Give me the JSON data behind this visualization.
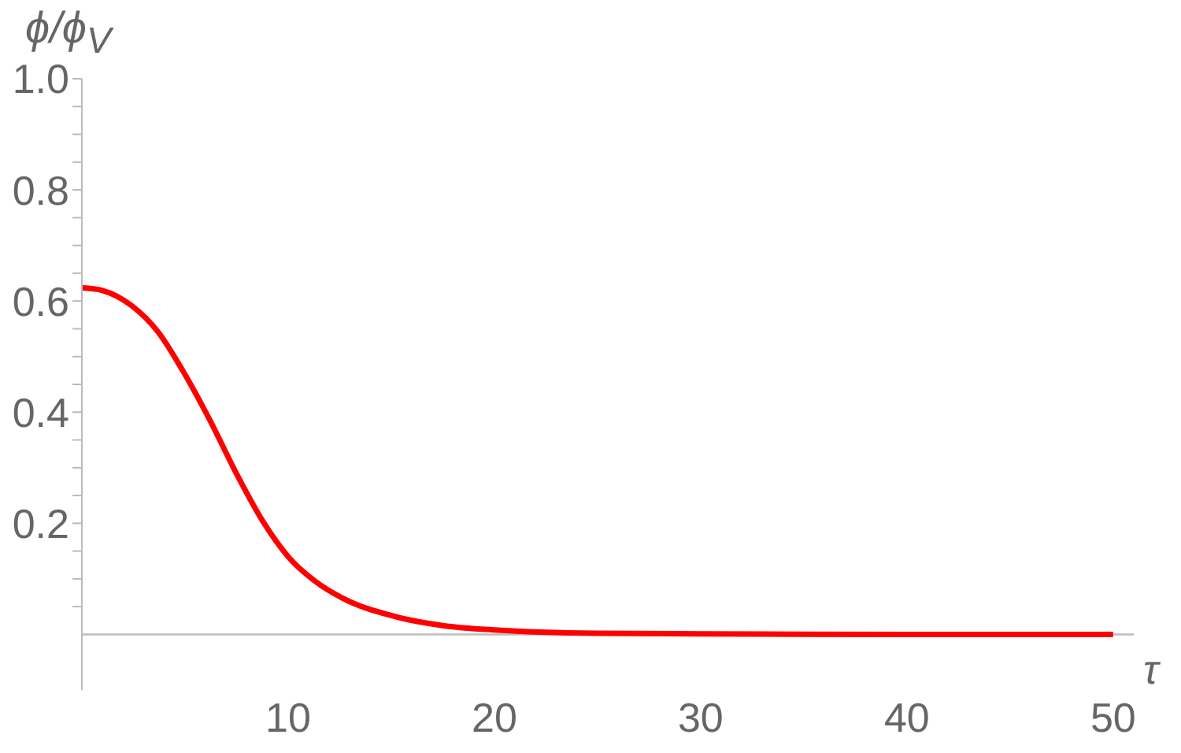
{
  "chart_data": {
    "type": "line",
    "xlabel": "τ",
    "ylabel": "ϕ/ϕ$_{V}$",
    "x": [
      0,
      1,
      2.4,
      3.7,
      4.9,
      6.2,
      7.5,
      8.8,
      10,
      11.3,
      12.6,
      15.1,
      17.5,
      20,
      25,
      30,
      40,
      50
    ],
    "series": [
      {
        "color": "#ff0000",
        "values": [
          0.624,
          0.619,
          0.592,
          0.544,
          0.474,
          0.386,
          0.289,
          0.202,
          0.14,
          0.096,
          0.066,
          0.033,
          0.016,
          0.008,
          0.002,
          0.001,
          0,
          0
        ]
      }
    ],
    "xlim": [
      0,
      51
    ],
    "ylim": [
      -0.1,
      1.0
    ],
    "xticks": [
      10,
      20,
      30,
      40,
      50
    ],
    "yticks": [
      {
        "value": 0.05,
        "label": null
      },
      {
        "value": 0.1,
        "label": null
      },
      {
        "value": 0.15,
        "label": null
      },
      0.2,
      {
        "value": 0.25,
        "label": null
      },
      {
        "value": 0.3,
        "label": null
      },
      {
        "value": 0.35,
        "label": null
      },
      0.4,
      {
        "value": 0.45,
        "label": null
      },
      {
        "value": 0.5,
        "label": null
      },
      {
        "value": 0.55,
        "label": null
      },
      0.6,
      {
        "value": 0.65,
        "label": null
      },
      {
        "value": 0.7,
        "label": null
      },
      {
        "value": 0.75,
        "label": null
      },
      0.8,
      {
        "value": 0.85,
        "label": null
      },
      {
        "value": 0.9,
        "label": null
      },
      {
        "value": 0.95,
        "label": null
      },
      {
        "value": 1.0,
        "label": "1.0"
      }
    ],
    "marker": "none",
    "line_style": "solid"
  }
}
